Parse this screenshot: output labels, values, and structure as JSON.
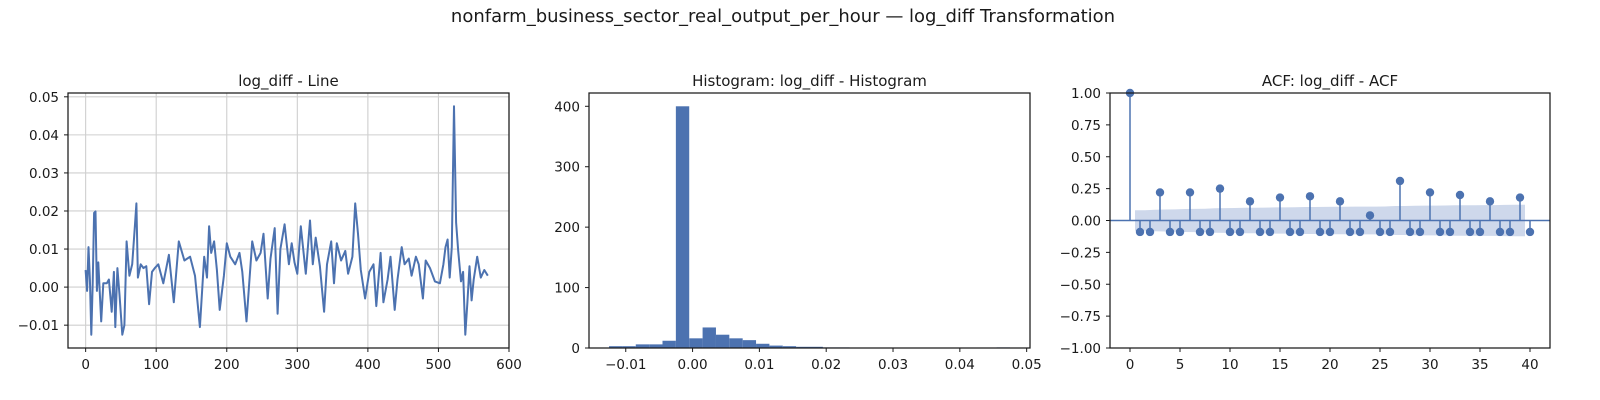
{
  "figure": {
    "suptitle": "nonfarm_business_sector_real_output_per_hour — log_diff Transformation"
  },
  "colors": {
    "series": "#4c72b0",
    "confband": "#c6d1e7",
    "axis": "#1a1a1a",
    "grid": "#cfcfcf"
  },
  "chart_data": [
    {
      "type": "line",
      "title": "log_diff - Line",
      "xlabel": "",
      "ylabel": "",
      "xlim": [
        -25,
        600
      ],
      "ylim": [
        -0.016,
        0.051
      ],
      "xticks": [
        0,
        100,
        200,
        300,
        400,
        500,
        600
      ],
      "yticks": [
        -0.01,
        0.0,
        0.01,
        0.02,
        0.03,
        0.04,
        0.05
      ],
      "xtick_labels": [
        "0",
        "100",
        "200",
        "300",
        "400",
        "500",
        "600"
      ],
      "ytick_labels": [
        "−0.01",
        "0.00",
        "0.01",
        "0.02",
        "0.03",
        "0.04",
        "0.05"
      ],
      "grid": true,
      "series": [
        {
          "x": [
            0,
            2,
            4,
            6,
            8,
            10,
            12,
            14,
            16,
            18,
            22,
            25,
            30,
            33,
            37,
            40,
            42,
            45,
            48,
            52,
            55,
            58,
            62,
            66,
            70,
            72,
            74,
            78,
            82,
            86,
            90,
            94,
            98,
            103,
            110,
            118,
            125,
            132,
            140,
            148,
            155,
            162,
            168,
            172,
            175,
            178,
            182,
            186,
            190,
            196,
            200,
            205,
            212,
            218,
            222,
            228,
            236,
            242,
            248,
            252,
            258,
            262,
            268,
            272,
            276,
            282,
            288,
            292,
            296,
            300,
            305,
            312,
            318,
            322,
            326,
            332,
            338,
            342,
            348,
            352,
            356,
            362,
            368,
            372,
            378,
            382,
            386,
            390,
            396,
            402,
            408,
            412,
            418,
            422,
            428,
            432,
            438,
            442,
            448,
            452,
            458,
            462,
            468,
            472,
            478,
            482,
            488,
            495,
            502,
            507,
            510,
            513,
            516,
            519,
            522,
            525,
            528,
            532,
            535,
            538,
            541,
            544,
            547,
            550,
            555,
            560,
            565,
            570
          ],
          "y": [
            0.0045,
            -0.001,
            0.0105,
            0.002,
            -0.0125,
            0.001,
            0.0195,
            0.0199,
            -0.001,
            0.0065,
            -0.009,
            0.001,
            0.001,
            0.002,
            -0.0065,
            0.004,
            -0.0105,
            0.005,
            -0.002,
            -0.0125,
            -0.01,
            0.012,
            0.003,
            0.006,
            0.0165,
            0.022,
            0.0025,
            0.006,
            0.005,
            0.0055,
            -0.0045,
            0.004,
            0.005,
            0.006,
            0.001,
            0.0085,
            -0.004,
            0.012,
            0.007,
            0.008,
            0.003,
            -0.0105,
            0.008,
            0.0025,
            0.016,
            0.009,
            0.012,
            0.0045,
            -0.006,
            0.003,
            0.0115,
            0.008,
            0.006,
            0.009,
            0.004,
            -0.009,
            0.012,
            0.007,
            0.009,
            0.014,
            -0.003,
            0.0075,
            0.0155,
            -0.007,
            0.01,
            0.0165,
            0.006,
            0.0115,
            0.0065,
            0.0035,
            0.016,
            0.0035,
            0.0175,
            0.006,
            0.013,
            0.0055,
            -0.0065,
            0.006,
            0.012,
            0.001,
            0.0115,
            0.007,
            0.0095,
            0.0035,
            0.008,
            0.022,
            0.014,
            0.0045,
            -0.003,
            0.004,
            0.006,
            -0.005,
            0.009,
            -0.004,
            0.002,
            0.008,
            -0.006,
            0.002,
            0.0105,
            0.006,
            0.0075,
            0.003,
            0.008,
            0.006,
            -0.003,
            0.007,
            0.005,
            0.0015,
            0.001,
            0.006,
            0.0105,
            0.0125,
            0.0025,
            0.0105,
            0.0475,
            0.017,
            0.0095,
            0.0015,
            0.004,
            -0.0125,
            -0.004,
            0.0055,
            -0.0035,
            0.002,
            0.008,
            0.0025,
            0.0045,
            0.003
          ]
        }
      ]
    },
    {
      "type": "bar",
      "title": "Histogram: log_diff - Histogram",
      "xlabel": "",
      "ylabel": "",
      "xlim": [
        -0.0155,
        0.0505
      ],
      "ylim": [
        0,
        422
      ],
      "xticks": [
        -0.01,
        0.0,
        0.01,
        0.02,
        0.03,
        0.04,
        0.05
      ],
      "yticks": [
        0,
        100,
        200,
        300,
        400
      ],
      "xtick_labels": [
        "−0.01",
        "0.00",
        "0.01",
        "0.02",
        "0.03",
        "0.04",
        "0.05"
      ],
      "ytick_labels": [
        "0",
        "100",
        "200",
        "300",
        "400"
      ],
      "grid": false,
      "bin_edges": [
        -0.0125,
        -0.0105,
        -0.0085,
        -0.0065,
        -0.0045,
        -0.0025,
        -0.0005,
        0.0015,
        0.0035,
        0.0055,
        0.0075,
        0.0095,
        0.0115,
        0.0135,
        0.0155,
        0.0175,
        0.0195,
        0.0215,
        0.0235,
        0.0255,
        0.0275,
        0.0295,
        0.0315,
        0.0335,
        0.0355,
        0.0375,
        0.0395,
        0.0415,
        0.0435,
        0.0455,
        0.0475
      ],
      "counts": [
        3,
        3,
        6,
        6,
        12,
        400,
        16,
        34,
        22,
        16,
        13,
        7,
        4,
        3,
        2,
        2,
        1,
        1,
        0,
        0,
        0,
        0,
        0,
        0,
        0,
        0,
        0,
        0,
        0,
        1
      ]
    },
    {
      "type": "scatter",
      "title": "ACF: log_diff - ACF",
      "xlabel": "",
      "ylabel": "",
      "xlim": [
        -2,
        42
      ],
      "ylim": [
        -1.0,
        1.0
      ],
      "xticks": [
        0,
        5,
        10,
        15,
        20,
        25,
        30,
        35,
        40
      ],
      "yticks": [
        -1.0,
        -0.75,
        -0.5,
        -0.25,
        0.0,
        0.25,
        0.5,
        0.75,
        1.0
      ],
      "xtick_labels": [
        "0",
        "5",
        "10",
        "15",
        "20",
        "25",
        "30",
        "35",
        "40"
      ],
      "ytick_labels": [
        "−1.00",
        "−0.75",
        "−0.50",
        "−0.25",
        "0.00",
        "0.25",
        "0.50",
        "0.75",
        "1.00"
      ],
      "grid": false,
      "lags": [
        0,
        1,
        2,
        3,
        4,
        5,
        6,
        7,
        8,
        9,
        10,
        11,
        12,
        13,
        14,
        15,
        16,
        17,
        18,
        19,
        20,
        21,
        22,
        23,
        24,
        25,
        26,
        27,
        28,
        29,
        30,
        31,
        32,
        33,
        34,
        35,
        36,
        37,
        38,
        39,
        40
      ],
      "acf": [
        1.0,
        -0.09,
        -0.09,
        0.22,
        -0.09,
        -0.09,
        0.22,
        -0.09,
        -0.09,
        0.25,
        -0.09,
        -0.09,
        0.15,
        -0.09,
        -0.09,
        0.18,
        -0.09,
        -0.09,
        0.19,
        -0.09,
        -0.09,
        0.15,
        -0.09,
        -0.09,
        0.04,
        -0.09,
        -0.09,
        0.31,
        -0.09,
        -0.09,
        0.22,
        -0.09,
        -0.09,
        0.2,
        -0.09,
        -0.09,
        0.15,
        -0.09,
        -0.09,
        0.18,
        -0.09
      ],
      "confint_upper": [
        0.08,
        0.08,
        0.081,
        0.085,
        0.086,
        0.087,
        0.09,
        0.091,
        0.092,
        0.096,
        0.097,
        0.098,
        0.1,
        0.1,
        0.101,
        0.103,
        0.103,
        0.104,
        0.106,
        0.106,
        0.107,
        0.108,
        0.108,
        0.109,
        0.109,
        0.109,
        0.11,
        0.114,
        0.114,
        0.115,
        0.117,
        0.117,
        0.118,
        0.119,
        0.119,
        0.12,
        0.121,
        0.121,
        0.122,
        0.123,
        0.123
      ]
    }
  ]
}
